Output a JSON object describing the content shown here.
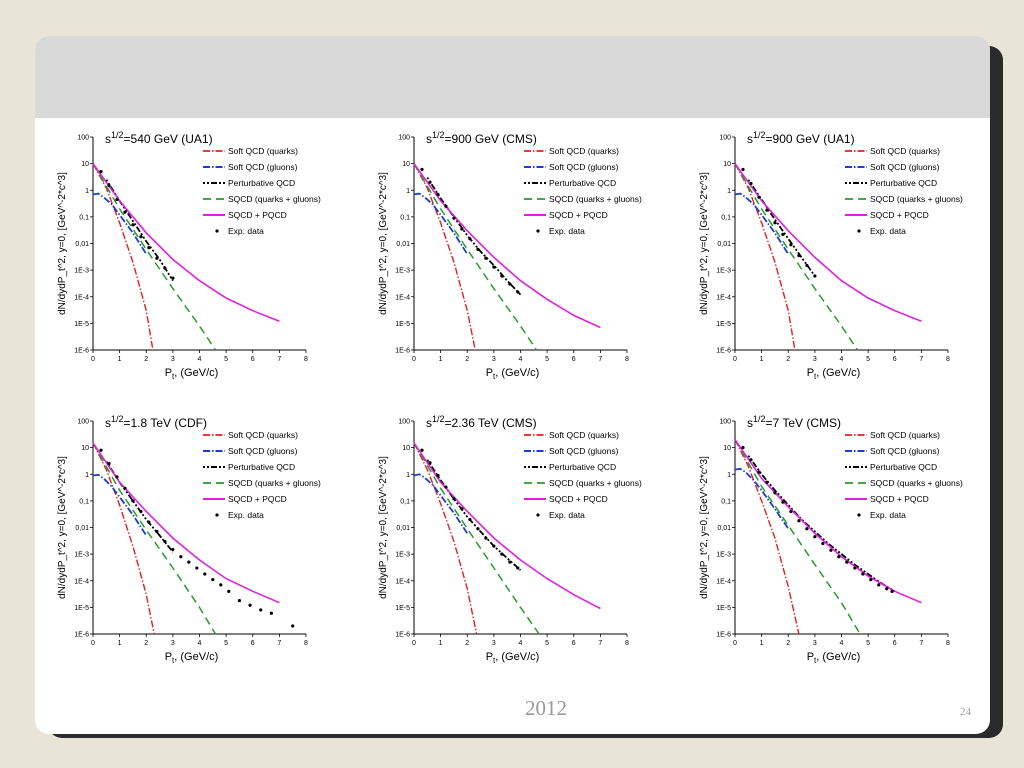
{
  "slide": {
    "footer_year": "2012",
    "page_number": "24"
  },
  "legend_labels": [
    "Soft QCD (quarks)",
    "Soft QCD (gluons)",
    "Perturbative QCD",
    "SQCD (quarks + gluons)",
    "SQCD + PQCD",
    "Exp. data"
  ],
  "colors": {
    "soft_quarks": "#e02020",
    "soft_gluons": "#1a3fd0",
    "perturbative": "#000000",
    "sqcd_total": "#2a9a2a",
    "sqcd_pqcd": "#e020e0",
    "exp": "#000000"
  },
  "chart_data": [
    {
      "type": "line",
      "title_base": "s",
      "title_sup": "1/2",
      "title_rest": "=540 GeV (UA1)",
      "xlabel": "P",
      "xlabel_sub": "t",
      "xlabel_unit": ", (GeV/c)",
      "ylabel": "dN/dydP_t^2, y=0, [GeV^-2*c^3]",
      "log_y": true,
      "xlim": [
        0,
        8
      ],
      "ylim": [
        1e-06,
        100
      ],
      "xticks": [
        "0",
        "1",
        "2",
        "3",
        "4",
        "5",
        "6",
        "7",
        "8"
      ],
      "yticks": [
        "100",
        "10",
        "1",
        "0,1",
        "0,01",
        "1E-3",
        "1E-4",
        "1E-5",
        "1E-6"
      ],
      "legend_position": "top-right",
      "series": [
        {
          "name": "Soft QCD (quarks)",
          "x": [
            0,
            0.5,
            1,
            1.5,
            2,
            2.25
          ],
          "y": [
            10,
            1.2,
            0.06,
            0.002,
            3e-05,
            1e-06
          ]
        },
        {
          "name": "Soft QCD (gluons)",
          "x": [
            0,
            0.2,
            0.4,
            0.7,
            1,
            1.5,
            2
          ],
          "y": [
            0.7,
            0.75,
            0.55,
            0.3,
            0.12,
            0.025,
            0.004
          ]
        },
        {
          "name": "Perturbative QCD",
          "x": [
            0.5,
            1,
            1.5,
            2,
            2.5,
            3
          ],
          "y": [
            2.5,
            0.4,
            0.07,
            0.012,
            0.0025,
            0.0004
          ]
        },
        {
          "name": "SQCD (quarks + gluons)",
          "x": [
            0,
            1,
            2,
            3,
            4,
            4.6
          ],
          "y": [
            10,
            0.2,
            0.006,
            0.0002,
            8e-06,
            1e-06
          ]
        },
        {
          "name": "SQCD + PQCD",
          "x": [
            0,
            1,
            2,
            3,
            4,
            5,
            6,
            7
          ],
          "y": [
            10,
            0.4,
            0.025,
            0.0025,
            0.0004,
            9e-05,
            3e-05,
            1.2e-05
          ]
        },
        {
          "name": "Exp. data",
          "x": [
            0.3,
            0.6,
            0.9,
            1.2,
            1.5,
            1.8,
            2.1,
            2.4,
            2.7,
            3.0
          ],
          "y": [
            5,
            1.5,
            0.45,
            0.15,
            0.05,
            0.018,
            0.007,
            0.0028,
            0.0012,
            0.0005
          ]
        }
      ]
    },
    {
      "type": "line",
      "title_base": "s",
      "title_sup": "1/2",
      "title_rest": "=900 GeV (CMS)",
      "xlabel": "P",
      "xlabel_sub": "t",
      "xlabel_unit": ", (GeV/c)",
      "ylabel": "dN/dydP_t^2, y=0, [GeV^-2*c^3]",
      "log_y": true,
      "xlim": [
        0,
        8
      ],
      "ylim": [
        1e-06,
        100
      ],
      "xticks": [
        "0",
        "1",
        "2",
        "3",
        "4",
        "5",
        "6",
        "7",
        "8"
      ],
      "yticks": [
        "100",
        "10",
        "1",
        "0,1",
        "0,01",
        "1E-3",
        "1E-4",
        "1E-5",
        "1E-6"
      ],
      "legend_position": "top-right",
      "series": [
        {
          "name": "Soft QCD (quarks)",
          "x": [
            0,
            0.5,
            1,
            1.5,
            2,
            2.3
          ],
          "y": [
            10,
            1.2,
            0.06,
            0.002,
            3e-05,
            1e-06
          ]
        },
        {
          "name": "Soft QCD (gluons)",
          "x": [
            0,
            0.2,
            0.4,
            0.7,
            1,
            1.5,
            2
          ],
          "y": [
            0.7,
            0.75,
            0.55,
            0.3,
            0.12,
            0.025,
            0.004
          ]
        },
        {
          "name": "Perturbative QCD",
          "x": [
            0.5,
            1,
            1.5,
            2,
            2.5,
            3,
            3.5,
            4
          ],
          "y": [
            3,
            0.5,
            0.1,
            0.02,
            0.005,
            0.0015,
            0.0004,
            0.00012
          ]
        },
        {
          "name": "SQCD (quarks + gluons)",
          "x": [
            0,
            1,
            2,
            3,
            4,
            4.6
          ],
          "y": [
            10,
            0.2,
            0.006,
            0.0002,
            8e-06,
            1e-06
          ]
        },
        {
          "name": "SQCD + PQCD",
          "x": [
            0,
            1,
            2,
            3,
            4,
            5,
            6,
            7
          ],
          "y": [
            10,
            0.4,
            0.03,
            0.003,
            0.0004,
            8e-05,
            2e-05,
            7e-06
          ]
        },
        {
          "name": "Exp. data",
          "x": [
            0.3,
            0.6,
            0.9,
            1.2,
            1.5,
            1.8,
            2.1,
            2.4,
            2.7,
            3.0,
            3.3,
            3.6,
            3.9
          ],
          "y": [
            6,
            2,
            0.7,
            0.25,
            0.09,
            0.035,
            0.015,
            0.006,
            0.0028,
            0.0013,
            0.0006,
            0.0003,
            0.00015
          ]
        }
      ]
    },
    {
      "type": "line",
      "title_base": "s",
      "title_sup": "1/2",
      "title_rest": "=900 GeV (UA1)",
      "xlabel": "P",
      "xlabel_sub": "t",
      "xlabel_unit": ", (GeV/c)",
      "ylabel": "dN/dydP_t^2, y=0, [GeV^-2*c^3]",
      "log_y": true,
      "xlim": [
        0,
        8
      ],
      "ylim": [
        1e-06,
        100
      ],
      "xticks": [
        "0",
        "1",
        "2",
        "3",
        "4",
        "5",
        "6",
        "7",
        "8"
      ],
      "yticks": [
        "100",
        "10",
        "1",
        "0,1",
        "0,01",
        "1E-3",
        "1E-4",
        "1E-5",
        "1E-6"
      ],
      "legend_position": "top-right",
      "series": [
        {
          "name": "Soft QCD (quarks)",
          "x": [
            0,
            0.5,
            1,
            1.5,
            2,
            2.25
          ],
          "y": [
            10,
            1.2,
            0.06,
            0.002,
            3e-05,
            1e-06
          ]
        },
        {
          "name": "Soft QCD (gluons)",
          "x": [
            0,
            0.2,
            0.4,
            0.7,
            1,
            1.5,
            2
          ],
          "y": [
            0.7,
            0.75,
            0.55,
            0.3,
            0.12,
            0.025,
            0.004
          ]
        },
        {
          "name": "Perturbative QCD",
          "x": [
            0.5,
            1,
            1.5,
            2,
            2.5,
            3
          ],
          "y": [
            2.5,
            0.45,
            0.08,
            0.015,
            0.003,
            0.0006
          ]
        },
        {
          "name": "SQCD (quarks + gluons)",
          "x": [
            0,
            1,
            2,
            3,
            4,
            4.6
          ],
          "y": [
            10,
            0.2,
            0.006,
            0.0002,
            8e-06,
            1e-06
          ]
        },
        {
          "name": "SQCD + PQCD",
          "x": [
            0,
            1,
            2,
            3,
            4,
            5,
            6,
            7
          ],
          "y": [
            10,
            0.4,
            0.03,
            0.003,
            0.0004,
            9e-05,
            3e-05,
            1.2e-05
          ]
        },
        {
          "name": "Exp. data",
          "x": [
            0.3,
            0.6,
            0.9,
            1.2,
            1.5,
            1.8,
            2.1,
            2.4,
            2.7,
            3.0
          ],
          "y": [
            6,
            1.8,
            0.55,
            0.18,
            0.06,
            0.022,
            0.009,
            0.0035,
            0.0015,
            0.0006
          ]
        }
      ]
    },
    {
      "type": "line",
      "title_base": "s",
      "title_sup": "1/2",
      "title_rest": "=1.8 TeV (CDF)",
      "xlabel": "P",
      "xlabel_sub": "t",
      "xlabel_unit": ", (GeV/c)",
      "ylabel": "dN/dydP_t^2, y=0, [GeV^-2*c^3]",
      "log_y": true,
      "xlim": [
        0,
        8
      ],
      "ylim": [
        1e-06,
        100
      ],
      "xticks": [
        "0",
        "1",
        "2",
        "3",
        "4",
        "5",
        "6",
        "7",
        "8"
      ],
      "yticks": [
        "100",
        "10",
        "1",
        "0,1",
        "0,01",
        "1E-3",
        "1E-4",
        "1E-5",
        "1E-6"
      ],
      "legend_position": "top-right",
      "series": [
        {
          "name": "Soft QCD (quarks)",
          "x": [
            0,
            0.5,
            1,
            1.5,
            2,
            2.3
          ],
          "y": [
            15,
            1.5,
            0.07,
            0.002,
            3e-05,
            1e-06
          ]
        },
        {
          "name": "Soft QCD (gluons)",
          "x": [
            0,
            0.2,
            0.4,
            0.7,
            1,
            1.5,
            2
          ],
          "y": [
            0.9,
            0.95,
            0.7,
            0.35,
            0.14,
            0.03,
            0.005
          ]
        },
        {
          "name": "Perturbative QCD",
          "x": [
            0.5,
            1,
            1.5,
            2,
            2.5,
            3
          ],
          "y": [
            3,
            0.5,
            0.1,
            0.02,
            0.005,
            0.0012
          ]
        },
        {
          "name": "SQCD (quarks + gluons)",
          "x": [
            0,
            1,
            2,
            3,
            4,
            4.6
          ],
          "y": [
            15,
            0.25,
            0.008,
            0.0003,
            1e-05,
            1e-06
          ]
        },
        {
          "name": "SQCD + PQCD",
          "x": [
            0,
            1,
            2,
            3,
            4,
            5,
            6,
            7
          ],
          "y": [
            15,
            0.5,
            0.04,
            0.004,
            0.0006,
            0.00012,
            4e-05,
            1.5e-05
          ]
        },
        {
          "name": "Exp. data",
          "x": [
            0.3,
            0.6,
            0.9,
            1.2,
            1.5,
            1.8,
            2.1,
            2.4,
            2.7,
            3.0,
            3.3,
            3.6,
            3.9,
            4.2,
            4.5,
            4.8,
            5.1,
            5.5,
            5.9,
            6.3,
            6.7,
            7.5
          ],
          "y": [
            8,
            2.5,
            0.8,
            0.3,
            0.1,
            0.04,
            0.016,
            0.007,
            0.003,
            0.0015,
            0.0008,
            0.0005,
            0.0003,
            0.00018,
            0.00011,
            7e-05,
            4e-05,
            1.8e-05,
            1.2e-05,
            8e-06,
            6e-06,
            2e-06
          ]
        }
      ]
    },
    {
      "type": "line",
      "title_base": "s",
      "title_sup": "1/2",
      "title_rest": "=2.36 TeV (CMS)",
      "xlabel": "P",
      "xlabel_sub": "t",
      "xlabel_unit": ", (GeV/c)",
      "ylabel": "dN/dydP_t^2, y=0, [GeV^-2*c^3]",
      "log_y": true,
      "xlim": [
        0,
        8
      ],
      "ylim": [
        1e-06,
        100
      ],
      "xticks": [
        "0",
        "1",
        "2",
        "3",
        "4",
        "5",
        "6",
        "7",
        "8"
      ],
      "yticks": [
        "100",
        "10",
        "1",
        "0,1",
        "0,01",
        "1E-3",
        "1E-4",
        "1E-5",
        "1E-6"
      ],
      "legend_position": "top-right",
      "series": [
        {
          "name": "Soft QCD (quarks)",
          "x": [
            0,
            0.5,
            1,
            1.5,
            2,
            2.35
          ],
          "y": [
            15,
            1.5,
            0.08,
            0.003,
            5e-05,
            1e-06
          ]
        },
        {
          "name": "Soft QCD (gluons)",
          "x": [
            0,
            0.2,
            0.4,
            0.7,
            1,
            1.5,
            2
          ],
          "y": [
            0.9,
            1,
            0.75,
            0.4,
            0.16,
            0.035,
            0.006
          ]
        },
        {
          "name": "Perturbative QCD",
          "x": [
            0.5,
            1,
            1.5,
            2,
            2.5,
            3,
            3.5,
            4
          ],
          "y": [
            3.5,
            0.6,
            0.12,
            0.025,
            0.007,
            0.002,
            0.0007,
            0.00025
          ]
        },
        {
          "name": "SQCD (quarks + gluons)",
          "x": [
            0,
            1,
            2,
            3,
            4,
            4.7
          ],
          "y": [
            15,
            0.3,
            0.009,
            0.0003,
            1e-05,
            1e-06
          ]
        },
        {
          "name": "SQCD + PQCD",
          "x": [
            0,
            1,
            2,
            3,
            4,
            5,
            6,
            7
          ],
          "y": [
            15,
            0.5,
            0.04,
            0.004,
            0.0006,
            0.00012,
            3e-05,
            9e-06
          ]
        },
        {
          "name": "Exp. data",
          "x": [
            0.3,
            0.6,
            0.9,
            1.2,
            1.5,
            1.8,
            2.1,
            2.4,
            2.7,
            3.0,
            3.3,
            3.6,
            3.9
          ],
          "y": [
            8,
            2.7,
            0.9,
            0.33,
            0.12,
            0.05,
            0.02,
            0.009,
            0.004,
            0.002,
            0.001,
            0.0005,
            0.0003
          ]
        }
      ]
    },
    {
      "type": "line",
      "title_base": "s",
      "title_sup": "1/2",
      "title_rest": "=7 TeV (CMS)",
      "xlabel": "P",
      "xlabel_sub": "t",
      "xlabel_unit": ", (GeV/c)",
      "ylabel": "dN/dydP_t^2, y=0, [GeV^-2*c^3]",
      "log_y": true,
      "xlim": [
        0,
        8
      ],
      "ylim": [
        1e-06,
        100
      ],
      "xticks": [
        "0",
        "1",
        "2",
        "3",
        "4",
        "5",
        "6",
        "7",
        "8"
      ],
      "yticks": [
        "100",
        "10",
        "1",
        "0,1",
        "0,01",
        "1E-3",
        "1E-4",
        "1E-5",
        "1E-6"
      ],
      "legend_position": "top-right",
      "series": [
        {
          "name": "Soft QCD (quarks)",
          "x": [
            0,
            0.5,
            1,
            1.5,
            2,
            2.4
          ],
          "y": [
            20,
            2,
            0.1,
            0.004,
            6e-05,
            1e-06
          ]
        },
        {
          "name": "Soft QCD (gluons)",
          "x": [
            0,
            0.2,
            0.4,
            0.7,
            1,
            1.5,
            2
          ],
          "y": [
            1.5,
            1.6,
            1.2,
            0.6,
            0.25,
            0.05,
            0.009
          ]
        },
        {
          "name": "Perturbative QCD",
          "x": [
            0.5,
            1,
            1.5,
            2,
            2.5,
            3,
            3.5,
            4,
            4.5,
            5,
            5.5,
            6
          ],
          "y": [
            5,
            1,
            0.25,
            0.07,
            0.02,
            0.007,
            0.0025,
            0.001,
            0.0004,
            0.00018,
            8e-05,
            4e-05
          ]
        },
        {
          "name": "SQCD (quarks + gluons)",
          "x": [
            0,
            1,
            2,
            3,
            4,
            4.7
          ],
          "y": [
            20,
            0.35,
            0.012,
            0.0004,
            1.5e-05,
            1e-06
          ]
        },
        {
          "name": "SQCD + PQCD",
          "x": [
            0,
            1,
            2,
            3,
            4,
            5,
            6,
            7
          ],
          "y": [
            20,
            0.7,
            0.06,
            0.006,
            0.0008,
            0.00015,
            4e-05,
            1.5e-05
          ]
        },
        {
          "name": "Exp. data",
          "x": [
            0.3,
            0.6,
            0.9,
            1.2,
            1.5,
            1.8,
            2.1,
            2.4,
            2.7,
            3.0,
            3.3,
            3.6,
            3.9,
            4.2,
            4.5,
            4.8,
            5.1,
            5.4,
            5.7,
            5.9
          ],
          "y": [
            10,
            3.5,
            1.2,
            0.5,
            0.2,
            0.09,
            0.04,
            0.018,
            0.009,
            0.0045,
            0.0025,
            0.0014,
            0.0008,
            0.0005,
            0.0003,
            0.00018,
            0.00011,
            7e-05,
            5e-05,
            4e-05
          ]
        }
      ]
    }
  ]
}
